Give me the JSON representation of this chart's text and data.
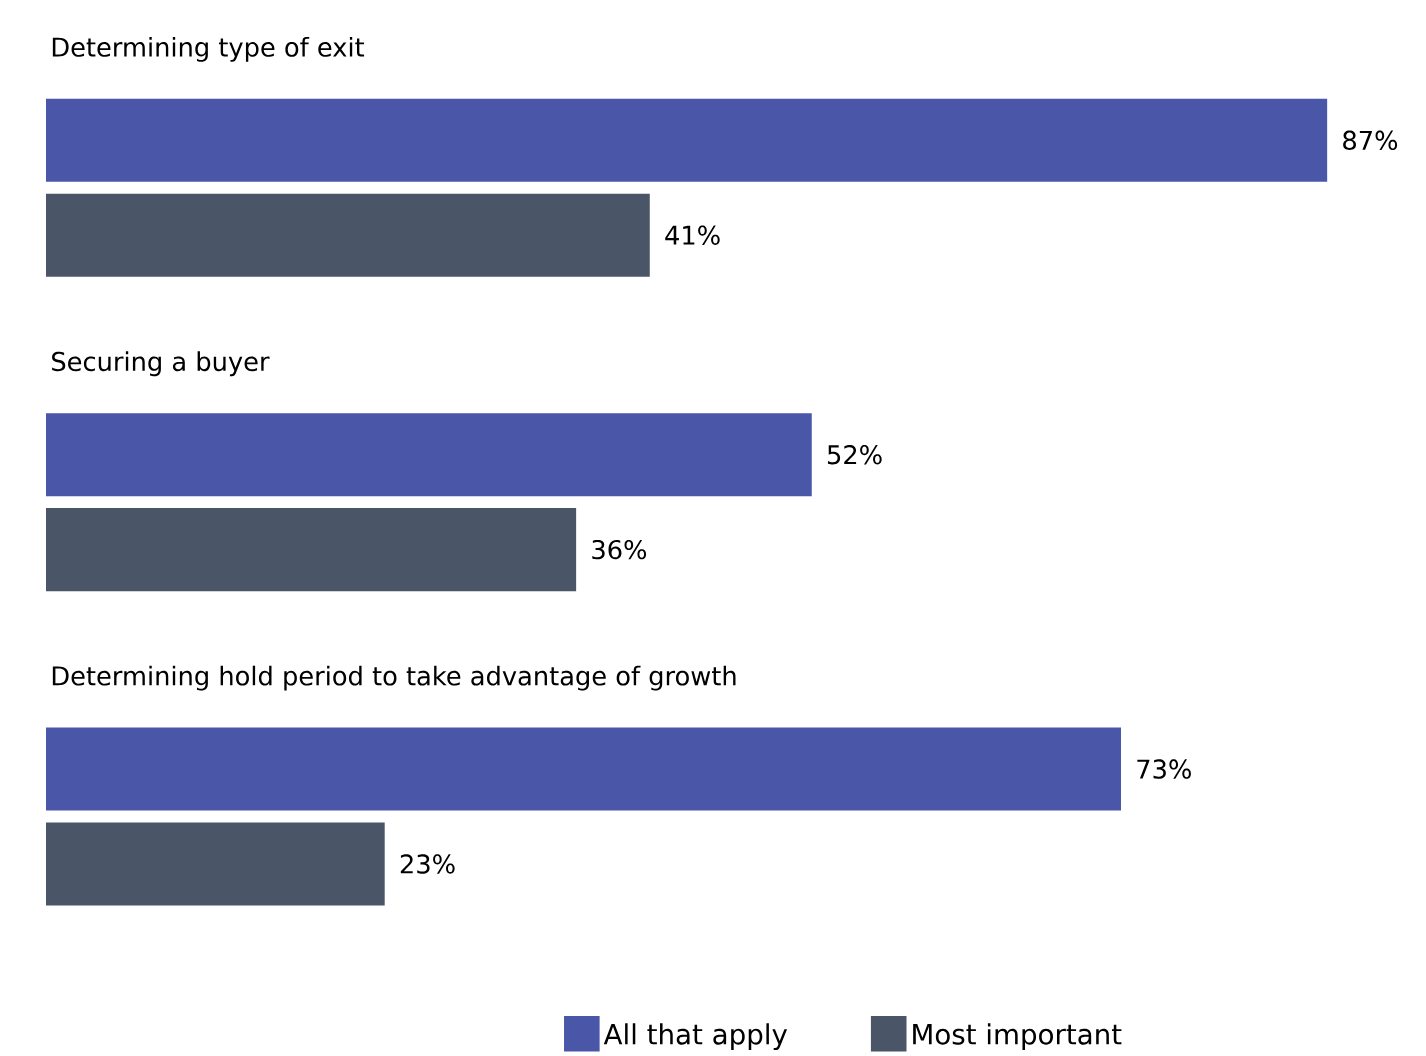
{
  "chart_data": {
    "type": "bar",
    "orientation": "horizontal",
    "categories": [
      "Determining type of exit",
      "Securing a buyer",
      "Determining hold period to take advantage of growth"
    ],
    "series": [
      {
        "name": "All that apply",
        "color": "#4a56a8",
        "values": [
          87,
          52,
          73
        ],
        "value_labels": [
          "87%",
          "52%",
          "73%"
        ]
      },
      {
        "name": "Most important",
        "color": "#4b5568",
        "values": [
          41,
          36,
          23
        ],
        "value_labels": [
          "41%",
          "36%",
          "23%"
        ]
      }
    ],
    "legend": "bottom"
  }
}
